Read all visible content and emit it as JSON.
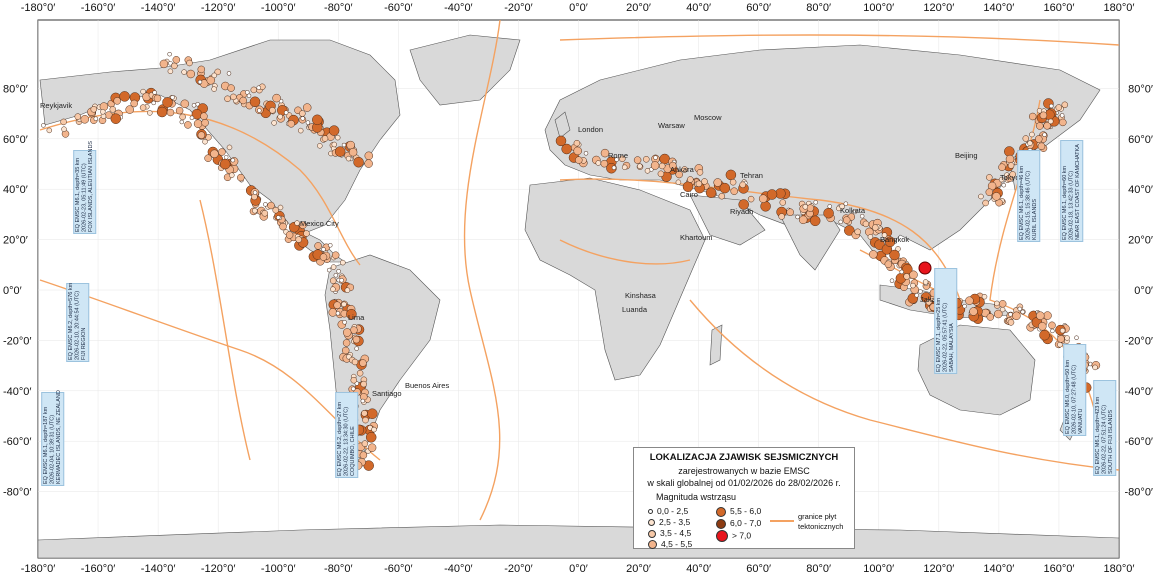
{
  "axes": {
    "lon_top": [
      "-180°0′",
      "-160°0′",
      "-140°0′",
      "-120°0′",
      "-100°0′",
      "-80°0′",
      "-60°0′",
      "-40°0′",
      "-20°0′",
      "0°0′",
      "20°0′",
      "40°0′",
      "60°0′",
      "80°0′",
      "100°0′",
      "120°0′",
      "140°0′",
      "160°0′",
      "180°0′"
    ],
    "lon_values": [
      -180,
      -160,
      -140,
      -120,
      -100,
      -80,
      -60,
      -40,
      -20,
      0,
      20,
      40,
      60,
      80,
      100,
      120,
      140,
      160,
      180
    ],
    "lat_labels": [
      "80°0′",
      "60°0′",
      "40°0′",
      "20°0′",
      "0°0′",
      "-20°0′",
      "-40°0′",
      "-60°0′",
      "-80°0′"
    ],
    "lat_values": [
      80,
      60,
      40,
      20,
      0,
      -20,
      -40,
      -60,
      -80
    ]
  },
  "cities": [
    "Reykjavik",
    "Warsaw",
    "Moscow",
    "London",
    "Rome",
    "Ankara",
    "Tehran",
    "Cairo",
    "Riyadh",
    "Kolkata",
    "Beijing",
    "Tokyo",
    "Bangkok",
    "Jakarta",
    "Khartoum",
    "Kinshasa",
    "Luanda",
    "Mexico City",
    "Lima",
    "Santiago",
    "Buenos Aires"
  ],
  "legend": {
    "title": "LOKALIZACJA ZJAWISK SEJSMICZNYCH",
    "line2": "zarejestrowanych w bazie EMSC",
    "line3": "w skali globalnej od 01/02/2026 do 28/02/2026 r.",
    "mag_title": "Magnituda wstrząsu",
    "classes": [
      "0,0 - 2,5",
      "2,5 - 3,5",
      "3,5 - 4,5",
      "4,5 - 5,5",
      "5,5 - 6,0",
      "6,0 - 7,0",
      "> 7,0"
    ],
    "class_colors": [
      "#ffffff",
      "#fce4d0",
      "#f7c9a8",
      "#f2b48c",
      "#d2692a",
      "#8c3b12",
      "#e8141c"
    ],
    "plates": "granice płyt tektonicznych"
  },
  "events": [
    {
      "text": "EQ EMSC M6.1, depth=35 km\n2026-02-23, 05:11:49 (UTC)\nFOX ISLANDS, ALEUTIAN ISLANDS"
    },
    {
      "text": "EQ EMSC M6.2, depth=576 km\n2026-02-10, 20:44:54 (UTC)\nFIJI REGION"
    },
    {
      "text": "EQ EMSC M6.1, depth=187 km\n2026-02-04, 10:39:31 (UTC)\nKERMADEC ISLANDS, NE ZEALAND"
    },
    {
      "text": "EQ EMSC M6.2, depth=27 km\n2026-02-22, 13:34:30 (UTC)\nCOQUIMBO, CHILE"
    },
    {
      "text": "EQ EMSC M7.1, depth=25 km\n2026-02-22, 05:57:41 (UTC)\nSABAH, MALAYSIA"
    },
    {
      "text": "EQ EMSC M6.1, depth=46 km\n2026-02-15, 15:38:46 (UTC)\nKURIL ISLANDS"
    },
    {
      "text": "EQ EMSC M6.1, depth=60 km\n2026-02-18, 13:42:33 (UTC)\nNEAR EAST COAST OF KAMCHATKA"
    },
    {
      "text": "EQ EMSC M6.0, depth=50 km\n2026-02-10, 07:27:48 (UTC)\nVANUATU"
    },
    {
      "text": "EQ EMSC M6.1, depth=423 km\n2026-02-22, 07:51:24 (UTC)\nSOUTH OF FIJI ISLANDS"
    }
  ]
}
